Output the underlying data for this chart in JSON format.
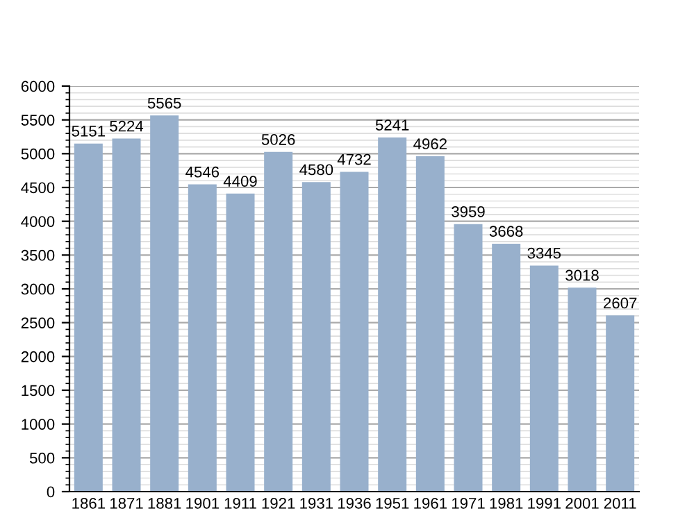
{
  "chart_data": {
    "type": "bar",
    "categories": [
      "1861",
      "1871",
      "1881",
      "1901",
      "1911",
      "1921",
      "1931",
      "1936",
      "1951",
      "1961",
      "1971",
      "1981",
      "1991",
      "2001",
      "2011"
    ],
    "values": [
      5151,
      5224,
      5565,
      4546,
      4409,
      5026,
      4580,
      4732,
      5241,
      4962,
      3959,
      3668,
      3345,
      3018,
      2607
    ],
    "color": "#98b0cc",
    "ylim": [
      0,
      6000
    ],
    "yticks": [
      0,
      500,
      1000,
      1500,
      2000,
      2500,
      3000,
      3500,
      4000,
      4500,
      5000,
      5500,
      6000
    ],
    "grid": "y",
    "data_labels": true
  }
}
